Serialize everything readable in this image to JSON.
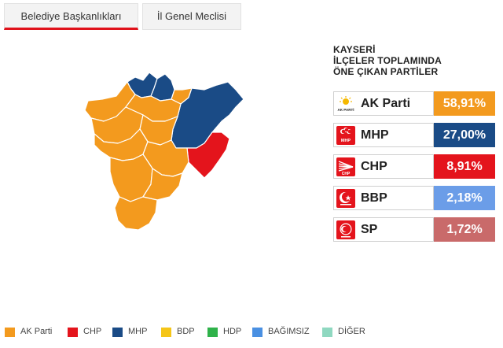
{
  "tabs": [
    {
      "label": "Belediye Başkanlıkları",
      "active": true
    },
    {
      "label": "İl Genel Meclisi",
      "active": false
    }
  ],
  "results": {
    "title_lines": [
      "KAYSERİ",
      "İLÇELER TOPLAMINDA",
      "ÖNE ÇIKAN PARTİLER"
    ],
    "parties": [
      {
        "name": "AK Parti",
        "percent": "58,91%",
        "color": "#f39a1e",
        "logo": "ak-parti-logo",
        "logo_text": "AK PARTİ"
      },
      {
        "name": "MHP",
        "percent": "27,00%",
        "color": "#1a4b86",
        "logo": "mhp-logo",
        "logo_text": "MHP"
      },
      {
        "name": "CHP",
        "percent": "8,91%",
        "color": "#e4141c",
        "logo": "chp-logo",
        "logo_text": "CHP"
      },
      {
        "name": "BBP",
        "percent": "2,18%",
        "color": "#6b9de8",
        "logo": "bbp-logo",
        "logo_text": ""
      },
      {
        "name": "SP",
        "percent": "1,72%",
        "color": "#c96a6a",
        "logo": "sp-logo",
        "logo_text": ""
      }
    ]
  },
  "map": {
    "colors": {
      "ak_parti": "#f39a1e",
      "mhp": "#1a4b86",
      "chp": "#e4141c",
      "border": "#ffffff"
    }
  },
  "legend": [
    {
      "label": "AK Parti",
      "color": "#f39a1e"
    },
    {
      "label": "CHP",
      "color": "#e4141c"
    },
    {
      "label": "MHP",
      "color": "#1a4b86"
    },
    {
      "label": "BDP",
      "color": "#f5c518"
    },
    {
      "label": "HDP",
      "color": "#2fb24a"
    },
    {
      "label": "BAĞIMSIZ",
      "color": "#4a90e2"
    },
    {
      "label": "DİĞER",
      "color": "#8fd8c0"
    }
  ]
}
